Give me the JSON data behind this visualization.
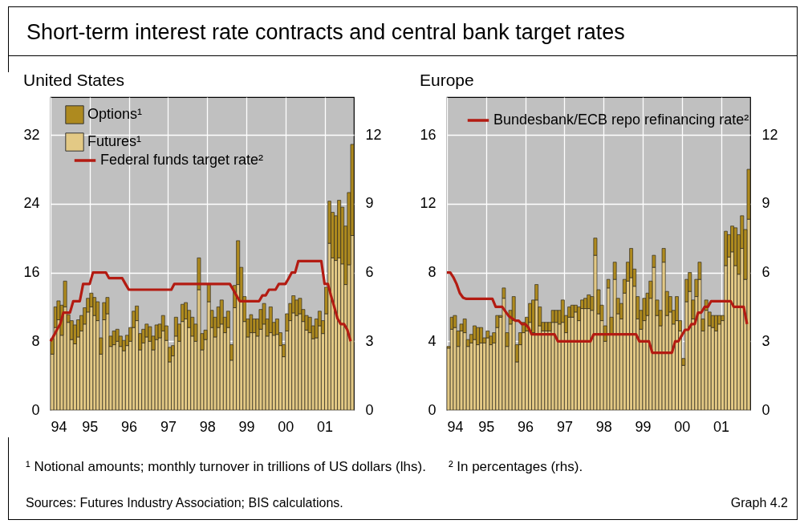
{
  "chart_data": [
    {
      "type": "bar",
      "title": "Short-term interest rate contracts and central bank target rates",
      "subtitle": "United States",
      "stacked": true,
      "grid": true,
      "legend": "top left",
      "x": [
        "1994-01",
        "1994-02",
        "1994-03",
        "1994-04",
        "1994-05",
        "1994-06",
        "1994-07",
        "1994-08",
        "1994-09",
        "1994-10",
        "1994-11",
        "1994-12",
        "1995-01",
        "1995-02",
        "1995-03",
        "1995-04",
        "1995-05",
        "1995-06",
        "1995-07",
        "1995-08",
        "1995-09",
        "1995-10",
        "1995-11",
        "1995-12",
        "1996-01",
        "1996-02",
        "1996-03",
        "1996-04",
        "1996-05",
        "1996-06",
        "1996-07",
        "1996-08",
        "1996-09",
        "1996-10",
        "1996-11",
        "1996-12",
        "1997-01",
        "1997-02",
        "1997-03",
        "1997-04",
        "1997-05",
        "1997-06",
        "1997-07",
        "1997-08",
        "1997-09",
        "1997-10",
        "1997-11",
        "1997-12",
        "1998-01",
        "1998-02",
        "1998-03",
        "1998-04",
        "1998-05",
        "1998-06",
        "1998-07",
        "1998-08",
        "1998-09",
        "1998-10",
        "1998-11",
        "1998-12",
        "1999-01",
        "1999-02",
        "1999-03",
        "1999-04",
        "1999-05",
        "1999-06",
        "1999-07",
        "1999-08",
        "1999-09",
        "1999-10",
        "1999-11",
        "1999-12",
        "2000-01",
        "2000-02",
        "2000-03",
        "2000-04",
        "2000-05",
        "2000-06",
        "2000-07",
        "2000-08",
        "2000-09",
        "2000-10",
        "2000-11",
        "2000-12",
        "2001-01",
        "2001-02",
        "2001-03",
        "2001-04",
        "2001-05",
        "2001-06",
        "2001-07",
        "2001-08",
        "2001-09"
      ],
      "xlim": [
        "1994-01",
        "2001-10"
      ],
      "xticks": [
        {
          "value": "1994-01",
          "label": "94"
        },
        {
          "value": "1995-01",
          "label": "95"
        },
        {
          "value": "1996-01",
          "label": "96"
        },
        {
          "value": "1997-01",
          "label": "97"
        },
        {
          "value": "1998-01",
          "label": "98"
        },
        {
          "value": "1999-01",
          "label": "99"
        },
        {
          "value": "2000-01",
          "label": "00"
        },
        {
          "value": "2001-01",
          "label": "01"
        }
      ],
      "ylim": [
        0,
        36.4
      ],
      "yticks": [
        0,
        8,
        16,
        24,
        32
      ],
      "y2lim": [
        0,
        13.65
      ],
      "y2ticks": [
        0,
        3,
        6,
        9,
        12
      ],
      "series": [
        {
          "name": "Futures¹",
          "color": "#e3c985",
          "values": [
            6.5,
            9.6,
            10.5,
            8.7,
            12.0,
            10.2,
            8.2,
            7.7,
            8.5,
            9.2,
            10.0,
            11.4,
            12.0,
            11.0,
            10.4,
            6.5,
            10.5,
            11.2,
            7.4,
            7.6,
            8.0,
            7.4,
            6.9,
            7.5,
            8.0,
            9.6,
            10.4,
            7.0,
            7.8,
            8.5,
            8.0,
            7.0,
            8.2,
            8.4,
            9.2,
            8.1,
            5.6,
            6.3,
            8.6,
            8.0,
            10.3,
            10.6,
            9.6,
            8.6,
            8.0,
            14.0,
            7.0,
            8.2,
            12.6,
            9.6,
            8.5,
            9.6,
            10.0,
            9.0,
            9.6,
            5.8,
            11.9,
            14.6,
            12.7,
            10.3,
            8.5,
            9.0,
            9.0,
            8.6,
            9.4,
            10.0,
            8.6,
            9.0,
            8.7,
            8.8,
            7.5,
            6.2,
            9.2,
            10.4,
            11.3,
            11.0,
            11.2,
            10.3,
            9.3,
            9.0,
            8.3,
            8.4,
            9.8,
            8.9,
            11.2,
            19.4,
            17.7,
            17.4,
            17.7,
            17.0,
            14.6,
            16.9,
            20.3
          ]
        },
        {
          "name": "Options¹",
          "color": "#ae8a1f",
          "values": [
            1.8,
            2.4,
            2.2,
            3.5,
            3.0,
            0.9,
            2.2,
            2.2,
            2.0,
            1.8,
            1.9,
            1.6,
            1.6,
            2.1,
            2.2,
            1.9,
            2.0,
            1.9,
            1.2,
            1.6,
            1.4,
            1.2,
            1.2,
            1.2,
            1.6,
            1.9,
            1.7,
            1.9,
            1.6,
            1.5,
            1.7,
            1.6,
            1.7,
            1.6,
            1.8,
            1.7,
            1.7,
            1.2,
            2.2,
            2.0,
            2.0,
            1.9,
            2.0,
            2.2,
            2.0,
            3.7,
            1.9,
            1.1,
            2.0,
            2.0,
            2.3,
            2.4,
            2.8,
            1.8,
            1.9,
            1.8,
            2.6,
            5.1,
            3.9,
            2.9,
            2.1,
            2.1,
            1.6,
            2.0,
            2.3,
            2.4,
            2.0,
            3.0,
            1.5,
            1.8,
            1.5,
            1.4,
            2.0,
            2.0,
            2.0,
            1.8,
            1.8,
            1.4,
            1.7,
            1.8,
            1.5,
            2.2,
            1.7,
            1.5,
            3.1,
            4.9,
            5.3,
            5.2,
            6.7,
            6.6,
            6.8,
            8.4,
            10.6
          ]
        },
        {
          "name": "Federal funds target rate²",
          "type": "line",
          "axis": "y2",
          "color": "#b31b12",
          "values": [
            3.0,
            3.25,
            3.5,
            3.75,
            4.25,
            4.25,
            4.25,
            4.75,
            4.75,
            4.75,
            5.5,
            5.5,
            5.5,
            6.0,
            6.0,
            6.0,
            6.0,
            6.0,
            5.75,
            5.75,
            5.75,
            5.75,
            5.75,
            5.5,
            5.25,
            5.25,
            5.25,
            5.25,
            5.25,
            5.25,
            5.25,
            5.25,
            5.25,
            5.25,
            5.25,
            5.25,
            5.25,
            5.25,
            5.5,
            5.5,
            5.5,
            5.5,
            5.5,
            5.5,
            5.5,
            5.5,
            5.5,
            5.5,
            5.5,
            5.5,
            5.5,
            5.5,
            5.5,
            5.5,
            5.5,
            5.5,
            5.25,
            5.0,
            4.75,
            4.75,
            4.75,
            4.75,
            4.75,
            4.75,
            4.75,
            5.0,
            5.0,
            5.25,
            5.25,
            5.25,
            5.5,
            5.5,
            5.5,
            5.75,
            6.0,
            6.0,
            6.5,
            6.5,
            6.5,
            6.5,
            6.5,
            6.5,
            6.5,
            6.5,
            5.5,
            5.5,
            5.0,
            4.5,
            4.0,
            3.75,
            3.75,
            3.5,
            3.0
          ]
        }
      ]
    },
    {
      "type": "bar",
      "title": "Europe",
      "stacked": true,
      "grid": true,
      "legend": "top left",
      "x": [
        "1994-01",
        "1994-02",
        "1994-03",
        "1994-04",
        "1994-05",
        "1994-06",
        "1994-07",
        "1994-08",
        "1994-09",
        "1994-10",
        "1994-11",
        "1994-12",
        "1995-01",
        "1995-02",
        "1995-03",
        "1995-04",
        "1995-05",
        "1995-06",
        "1995-07",
        "1995-08",
        "1995-09",
        "1995-10",
        "1995-11",
        "1995-12",
        "1996-01",
        "1996-02",
        "1996-03",
        "1996-04",
        "1996-05",
        "1996-06",
        "1996-07",
        "1996-08",
        "1996-09",
        "1996-10",
        "1996-11",
        "1996-12",
        "1997-01",
        "1997-02",
        "1997-03",
        "1997-04",
        "1997-05",
        "1997-06",
        "1997-07",
        "1997-08",
        "1997-09",
        "1997-10",
        "1997-11",
        "1997-12",
        "1998-01",
        "1998-02",
        "1998-03",
        "1998-04",
        "1998-05",
        "1998-06",
        "1998-07",
        "1998-08",
        "1998-09",
        "1998-10",
        "1998-11",
        "1998-12",
        "1999-01",
        "1999-02",
        "1999-03",
        "1999-04",
        "1999-05",
        "1999-06",
        "1999-07",
        "1999-08",
        "1999-09",
        "1999-10",
        "1999-11",
        "1999-12",
        "2000-01",
        "2000-02",
        "2000-03",
        "2000-04",
        "2000-05",
        "2000-06",
        "2000-07",
        "2000-08",
        "2000-09",
        "2000-10",
        "2000-11",
        "2000-12",
        "2001-01",
        "2001-02",
        "2001-03",
        "2001-04",
        "2001-05",
        "2001-06",
        "2001-07",
        "2001-08",
        "2001-09"
      ],
      "xlim": [
        "1994-01",
        "2001-10"
      ],
      "xticks": [
        {
          "value": "1994-01",
          "label": "94"
        },
        {
          "value": "1995-01",
          "label": "95"
        },
        {
          "value": "1996-01",
          "label": "96"
        },
        {
          "value": "1997-01",
          "label": "97"
        },
        {
          "value": "1998-01",
          "label": "98"
        },
        {
          "value": "1999-01",
          "label": "99"
        },
        {
          "value": "2000-01",
          "label": "00"
        },
        {
          "value": "2001-01",
          "label": "01"
        }
      ],
      "ylim": [
        0,
        18.2
      ],
      "yticks": [
        0,
        4,
        8,
        12,
        16
      ],
      "y2lim": [
        0,
        13.65
      ],
      "y2ticks": [
        0,
        3,
        6,
        9,
        12
      ],
      "series": [
        {
          "color": "#e3c985",
          "values": [
            3.6,
            4.7,
            4.8,
            3.7,
            4.6,
            4.5,
            3.7,
            3.9,
            4.1,
            3.8,
            3.9,
            3.9,
            4.2,
            3.8,
            3.9,
            4.8,
            5.4,
            6.5,
            3.7,
            5.0,
            5.2,
            2.8,
            3.8,
            4.5,
            4.6,
            5.1,
            4.5,
            6.4,
            4.9,
            4.6,
            4.6,
            4.6,
            5.1,
            5.1,
            5.0,
            5.1,
            4.5,
            5.4,
            5.4,
            5.7,
            5.2,
            5.9,
            5.9,
            5.9,
            5.8,
            9.0,
            5.6,
            5.2,
            4.0,
            7.1,
            4.4,
            7.6,
            5.6,
            5.3,
            6.8,
            7.5,
            7.7,
            7.2,
            5.3,
            4.7,
            5.2,
            5.5,
            6.5,
            8.3,
            5.5,
            4.9,
            8.6,
            5.5,
            5.7,
            5.0,
            5.2,
            4.6,
            2.6,
            6.3,
            6.9,
            5.3,
            6.6,
            7.6,
            4.6,
            5.8,
            4.9,
            4.8,
            4.6,
            5.0,
            5.2,
            8.4,
            8.9,
            9.2,
            8.4,
            7.9,
            9.4,
            7.6,
            11.1
          ]
        },
        {
          "color": "#ae8a1f",
          "values": [
            0.1,
            0.7,
            0.7,
            0.9,
            0.4,
            0.8,
            0.4,
            0.5,
            0.8,
            1.0,
            0.9,
            0.3,
            0.4,
            0.5,
            0.6,
            0.7,
            0.1,
            0.6,
            0.8,
            0.8,
            1.4,
            1.0,
            0.7,
            0.6,
            0.8,
            1.1,
            1.9,
            0.9,
            1.1,
            0.5,
            0.5,
            0.5,
            0.7,
            0.7,
            0.8,
            1.3,
            1.0,
            0.6,
            0.7,
            0.4,
            0.8,
            0.5,
            0.6,
            0.8,
            0.8,
            1.0,
            1.4,
            0.9,
            0.9,
            0.5,
            1.0,
            1.0,
            0.9,
            0.9,
            0.8,
            1.1,
            1.7,
            1.0,
            1.3,
            1.1,
            1.3,
            1.3,
            1.0,
            0.7,
            0.9,
            0.9,
            0.8,
            1.4,
            0.9,
            0.8,
            1.4,
            0.6,
            0.4,
            1.3,
            1.1,
            1.1,
            1.0,
            1.0,
            0.7,
            0.6,
            0.8,
            0.7,
            0.9,
            0.5,
            0.3,
            2.0,
            1.3,
            1.5,
            2.2,
            2.3,
            1.9,
            2.9,
            2.9
          ]
        },
        {
          "name": "Bundesbank/ECB repo refinancing rate²",
          "type": "line",
          "axis": "y2",
          "color": "#b31b12",
          "values": [
            6.0,
            6.0,
            5.8,
            5.5,
            5.1,
            4.9,
            4.85,
            4.85,
            4.85,
            4.85,
            4.85,
            4.85,
            4.85,
            4.85,
            4.85,
            4.5,
            4.5,
            4.5,
            4.3,
            4.1,
            4.0,
            3.9,
            3.9,
            3.75,
            3.75,
            3.6,
            3.3,
            3.3,
            3.3,
            3.3,
            3.3,
            3.3,
            3.3,
            3.3,
            3.0,
            3.0,
            3.0,
            3.0,
            3.0,
            3.0,
            3.0,
            3.0,
            3.0,
            3.0,
            3.0,
            3.3,
            3.3,
            3.3,
            3.3,
            3.3,
            3.3,
            3.3,
            3.3,
            3.3,
            3.3,
            3.3,
            3.3,
            3.3,
            3.3,
            3.0,
            3.0,
            3.0,
            3.0,
            2.5,
            2.5,
            2.5,
            2.5,
            2.5,
            2.5,
            2.5,
            3.0,
            3.0,
            3.25,
            3.5,
            3.5,
            3.75,
            3.75,
            4.25,
            4.25,
            4.5,
            4.5,
            4.75,
            4.75,
            4.75,
            4.75,
            4.75,
            4.75,
            4.75,
            4.5,
            4.5,
            4.5,
            4.5,
            3.75
          ]
        }
      ],
      "annotations": [
        "¹ Notional amounts; monthly turnover in trillions of US dollars (lhs).",
        "² In percentages (rhs).",
        "Sources: Futures Industry Association; BIS calculations.",
        "Graph 4.2"
      ]
    }
  ]
}
